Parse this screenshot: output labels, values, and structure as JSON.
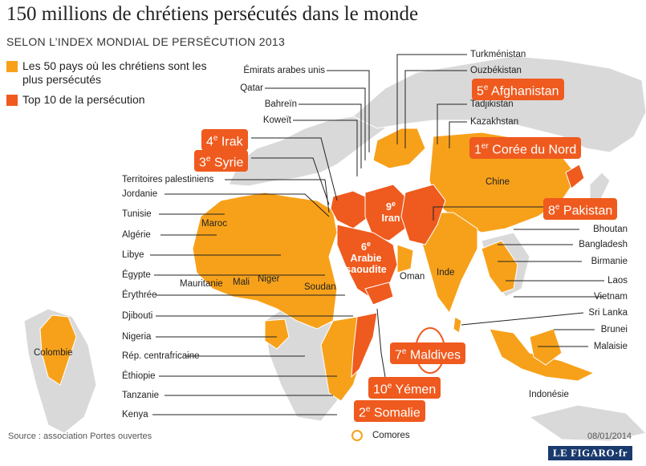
{
  "title": "150 millions de chrétiens persécutés dans le monde",
  "subtitle": "SELON L’INDEX MONDIAL DE PERSÉCUTION 2013",
  "legend": [
    {
      "label": "Les 50 pays où les chrétiens sont les plus persécutés",
      "color": "#f7a11a"
    },
    {
      "label": "Top 10 de la persécution",
      "color": "#ef5a1e"
    }
  ],
  "colors": {
    "sea": "#ffffff",
    "land": "#d9d9d9",
    "persecuted": "#f7a11a",
    "top10": "#ef5a1e",
    "line": "#222222"
  },
  "top10": [
    {
      "rank": "1",
      "suffix": "er",
      "name": "Corée du Nord"
    },
    {
      "rank": "2",
      "suffix": "e",
      "name": "Somalie"
    },
    {
      "rank": "3",
      "suffix": "e",
      "name": "Syrie"
    },
    {
      "rank": "4",
      "suffix": "e",
      "name": "Irak"
    },
    {
      "rank": "5",
      "suffix": "e",
      "name": "Afghanistan"
    },
    {
      "rank": "6",
      "suffix": "e",
      "name": "Arabie saoudite"
    },
    {
      "rank": "7",
      "suffix": "e",
      "name": "Maldives"
    },
    {
      "rank": "8",
      "suffix": "e",
      "name": "Pakistan"
    },
    {
      "rank": "9",
      "suffix": "e",
      "name": "Iran"
    },
    {
      "rank": "10",
      "suffix": "e",
      "name": "Yémen"
    }
  ],
  "labels_left": [
    "Territoires palestiniens",
    "Jordanie",
    "Tunisie",
    "Algérie",
    "Libye",
    "Égypte",
    "Érythrée",
    "Djibouti",
    "Nigeria",
    "Rép. centrafricaine",
    "Éthiopie",
    "Tanzanie",
    "Kenya"
  ],
  "labels_top": [
    "Émirats arabes unis",
    "Qatar",
    "Bahreïn",
    "Koweït"
  ],
  "labels_right_top": [
    "Turkménistan",
    "Ouzbékistan",
    "Tadjikistan",
    "Kazakhstan"
  ],
  "labels_right": [
    "Bhoutan",
    "Bangladesh",
    "Birmanie",
    "Laos",
    "Vietnam",
    "Sri Lanka",
    "Brunei",
    "Malaisie"
  ],
  "labels_map": [
    "Colombie",
    "Maroc",
    "Mauritanie",
    "Mali",
    "Niger",
    "Soudan",
    "Oman",
    "Inde",
    "Chine",
    "Indonésie",
    "Comores"
  ],
  "source": "Source : association Portes ouvertes",
  "date": "08/01/2014",
  "logo": "LE FIGARO·fr"
}
